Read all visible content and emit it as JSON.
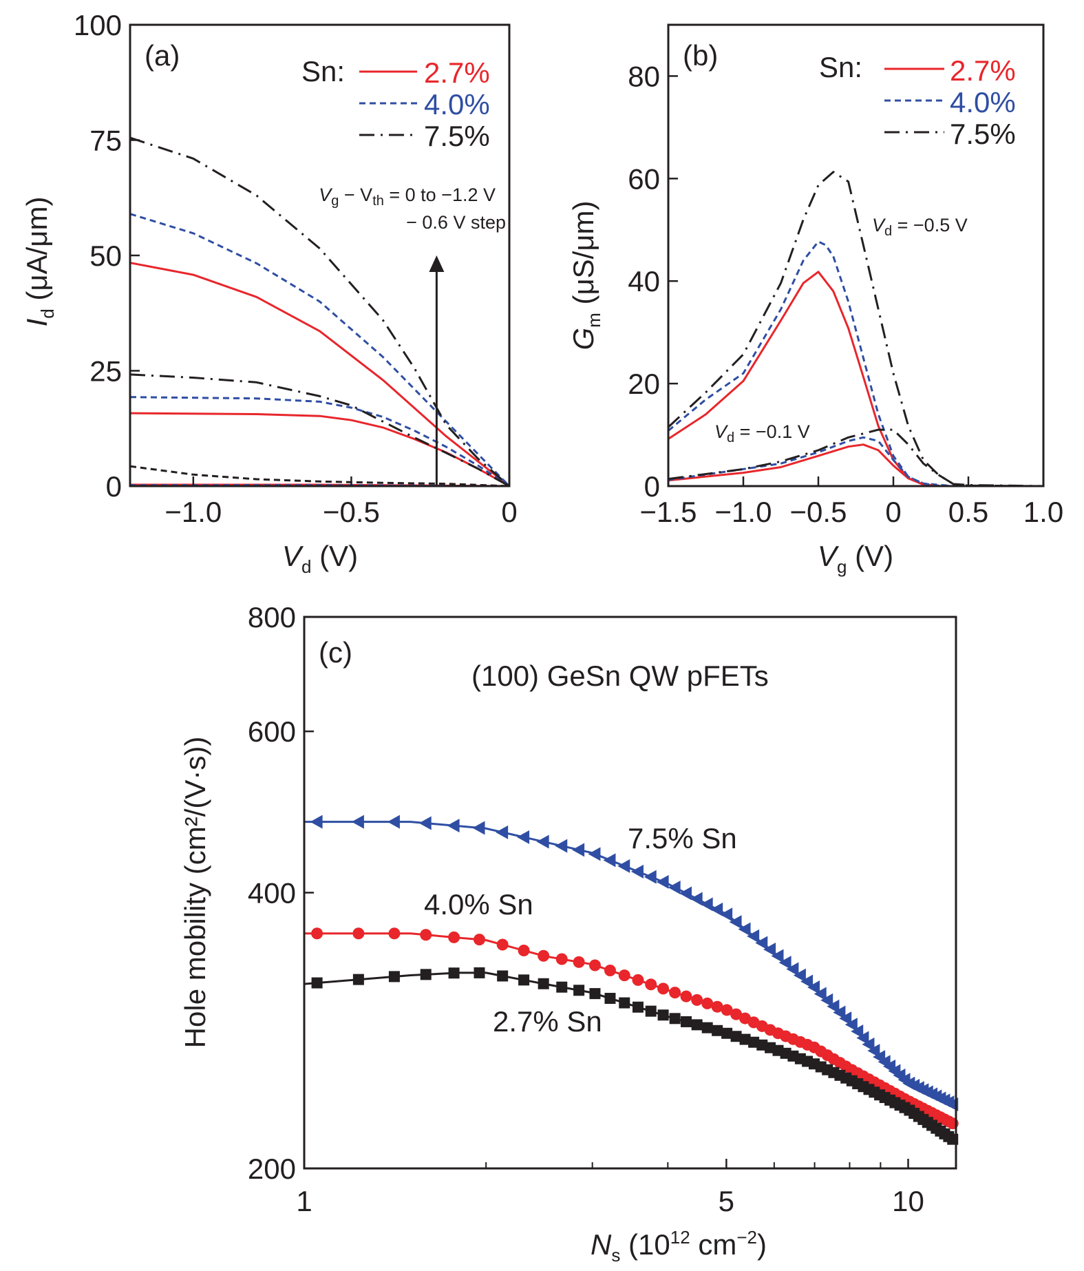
{
  "colors": {
    "red": "#e8262b",
    "blue": "#2f4ea3",
    "black": "#231f20"
  },
  "chart_data": [
    {
      "type": "line",
      "panel_label": "(a)",
      "xlabel": {
        "main": "V",
        "sub": "d",
        "unit": " (V)"
      },
      "ylabel": {
        "main": "I",
        "sub": "d",
        "unit": " (μA/μm)"
      },
      "xlim": [
        -1.2,
        0
      ],
      "ylim": [
        0,
        100
      ],
      "xticks": [
        {
          "v": -1.0,
          "label": "−1.0"
        },
        {
          "v": -0.5,
          "label": "−0.5"
        },
        {
          "v": 0,
          "label": "0"
        }
      ],
      "yticks": [
        {
          "v": 100,
          "label": "100"
        },
        {
          "v": 75,
          "label": "75"
        },
        {
          "v": 50,
          "label": "50"
        },
        {
          "v": 25,
          "label": "25"
        },
        {
          "v": 0,
          "label": "0"
        }
      ],
      "legend": {
        "title": "Sn:",
        "placement": "top-right",
        "entries": [
          {
            "label": "2.7%",
            "color": "red",
            "style": "solid"
          },
          {
            "label": "4.0%",
            "color": "blue",
            "style": "dashed"
          },
          {
            "label": "7.5%",
            "color": "black",
            "style": "dashdot"
          }
        ]
      },
      "annotation": {
        "line1_a": "V",
        "line1_a_sub": "g",
        "line1_b": " − V",
        "line1_b_sub": "th",
        "line1_c": " = 0 to −1.2 V",
        "line2": "− 0.6 V step",
        "arrow_x": -0.23,
        "arrow_from": 0,
        "arrow_to": 50
      },
      "series": [
        {
          "sn": "2.7%",
          "color": "red",
          "style": "solid",
          "x": [
            -1.2,
            -1.0,
            -0.8,
            -0.6,
            -0.4,
            -0.2,
            0
          ],
          "y": [
            48.4,
            45.8,
            41,
            33.6,
            23,
            10.8,
            0
          ]
        },
        {
          "sn": "2.7%",
          "color": "red",
          "style": "solid",
          "x": [
            -1.2,
            -0.8,
            -0.6,
            -0.5,
            -0.4,
            -0.3,
            -0.2,
            -0.1,
            0
          ],
          "y": [
            15.8,
            15.6,
            15.2,
            14.3,
            12.7,
            10.2,
            7.3,
            3.8,
            0
          ]
        },
        {
          "sn": "2.7%",
          "color": "red",
          "style": "solid",
          "x": [
            -1.2,
            -0.6,
            0
          ],
          "y": [
            0.3,
            0.3,
            0
          ]
        },
        {
          "sn": "4.0%",
          "color": "blue",
          "style": "dashed",
          "x": [
            -1.2,
            -1.0,
            -0.8,
            -0.6,
            -0.4,
            -0.2,
            0
          ],
          "y": [
            59,
            54.8,
            48.3,
            40,
            28,
            14,
            0
          ]
        },
        {
          "sn": "4.0%",
          "color": "blue",
          "style": "dashed",
          "x": [
            -1.2,
            -0.8,
            -0.6,
            -0.5,
            -0.4,
            -0.3,
            -0.2,
            -0.1,
            0
          ],
          "y": [
            19.3,
            19,
            18.3,
            17,
            15,
            12,
            8.5,
            4.5,
            0
          ]
        },
        {
          "sn": "4.0%",
          "color": "blue",
          "style": "dashed",
          "x": [
            -1.2,
            -0.6,
            0
          ],
          "y": [
            0.2,
            0.2,
            0
          ]
        },
        {
          "sn": "7.5%",
          "color": "black",
          "style": "dashdot",
          "x": [
            -1.2,
            -1.0,
            -0.8,
            -0.6,
            -0.4,
            -0.3,
            -0.2,
            -0.1,
            0
          ],
          "y": [
            75.5,
            71,
            63,
            51.5,
            36,
            25.5,
            13.3,
            6,
            0
          ]
        },
        {
          "sn": "7.5%",
          "color": "black",
          "style": "dashdot",
          "x": [
            -1.2,
            -1.0,
            -0.8,
            -0.6,
            -0.5,
            -0.4,
            -0.3,
            -0.2,
            -0.1,
            0
          ],
          "y": [
            24.2,
            23.5,
            22.5,
            19.5,
            17.5,
            14,
            10.5,
            7.2,
            3.8,
            0
          ]
        },
        {
          "sn": "7.5%",
          "color": "black",
          "style": "dashed",
          "x": [
            -1.2,
            -1.0,
            -0.8,
            -0.6,
            -0.4,
            -0.2,
            0
          ],
          "y": [
            4.3,
            2.5,
            1.5,
            1,
            0.7,
            0.5,
            0
          ]
        }
      ]
    },
    {
      "type": "line",
      "panel_label": "(b)",
      "xlabel": {
        "main": "V",
        "sub": "g",
        "unit": " (V)"
      },
      "ylabel": {
        "main": "G",
        "sub": "m",
        "unit": " (μS/μm)"
      },
      "xlim": [
        -1.5,
        1.0
      ],
      "ylim": [
        0,
        90
      ],
      "xticks": [
        {
          "v": -1.5,
          "label": "−1.5"
        },
        {
          "v": -1.0,
          "label": "−1.0"
        },
        {
          "v": -0.5,
          "label": "−0.5"
        },
        {
          "v": 0,
          "label": "0"
        },
        {
          "v": 0.5,
          "label": "0.5"
        },
        {
          "v": 1.0,
          "label": "1.0"
        }
      ],
      "yticks": [
        {
          "v": 80,
          "label": "80"
        },
        {
          "v": 60,
          "label": "60"
        },
        {
          "v": 40,
          "label": "40"
        },
        {
          "v": 20,
          "label": "20"
        },
        {
          "v": 0,
          "label": "0"
        }
      ],
      "legend": {
        "title": "Sn:",
        "placement": "top-right",
        "entries": [
          {
            "label": "2.7%",
            "color": "red",
            "style": "solid"
          },
          {
            "label": "4.0%",
            "color": "blue",
            "style": "dashed"
          },
          {
            "label": "7.5%",
            "color": "black",
            "style": "dashdot"
          }
        ]
      },
      "annotations": [
        {
          "main": "V",
          "sub": "d",
          "rest": " = −0.5 V"
        },
        {
          "main": "V",
          "sub": "d",
          "rest": " = −0.1 V"
        }
      ],
      "series": [
        {
          "sn": "2.7%",
          "vd": "-0.5 V",
          "color": "red",
          "style": "solid",
          "x": [
            -1.5,
            -1.25,
            -1.0,
            -0.75,
            -0.6,
            -0.5,
            -0.4,
            -0.3,
            -0.2,
            -0.1,
            0,
            0.1,
            0.2,
            0.3,
            0.5
          ],
          "y": [
            9.2,
            14,
            20.5,
            32.3,
            39.6,
            41.8,
            38,
            30.8,
            21.3,
            11.7,
            5.1,
            1.5,
            0.3,
            0,
            0
          ]
        },
        {
          "sn": "4.0%",
          "vd": "-0.5 V",
          "color": "blue",
          "style": "dashed",
          "x": [
            -1.5,
            -1.25,
            -1.0,
            -0.75,
            -0.6,
            -0.5,
            -0.45,
            -0.4,
            -0.3,
            -0.2,
            -0.1,
            0,
            0.1,
            0.2,
            0.4
          ],
          "y": [
            10.8,
            16.9,
            22,
            34.5,
            44,
            47.7,
            47,
            44.8,
            36,
            25,
            14,
            5.9,
            1.8,
            0.5,
            0
          ]
        },
        {
          "sn": "7.5%",
          "vd": "-0.5 V",
          "color": "black",
          "style": "dashdot",
          "x": [
            -1.5,
            -1.25,
            -1.0,
            -0.75,
            -0.6,
            -0.5,
            -0.4,
            -0.3,
            -0.2,
            -0.1,
            0,
            0.1,
            0.2,
            0.3,
            0.4,
            0.5,
            1.0
          ],
          "y": [
            11.5,
            18.3,
            25.7,
            39.6,
            52,
            58.7,
            61.3,
            59.4,
            47,
            34.5,
            22,
            11.7,
            5.1,
            2.2,
            0.4,
            0.2,
            0
          ]
        },
        {
          "sn": "2.7%",
          "vd": "-0.1 V",
          "color": "red",
          "style": "solid",
          "x": [
            -1.5,
            -1.0,
            -0.75,
            -0.5,
            -0.3,
            -0.2,
            -0.1,
            0,
            0.1,
            0.2,
            0.3,
            0.5
          ],
          "y": [
            1.1,
            2.6,
            3.7,
            5.9,
            7.7,
            8.1,
            7,
            4,
            1.5,
            0.3,
            0,
            0
          ]
        },
        {
          "sn": "4.0%",
          "vd": "-0.1 V",
          "color": "blue",
          "style": "dashed",
          "x": [
            -1.5,
            -1.0,
            -0.75,
            -0.5,
            -0.3,
            -0.2,
            -0.1,
            0,
            0.1,
            0.2,
            0.3,
            0.4
          ],
          "y": [
            1.2,
            3.3,
            4.4,
            6.6,
            8.8,
            9.5,
            8.8,
            5.1,
            1.8,
            0.5,
            0.1,
            0
          ]
        },
        {
          "sn": "7.5%",
          "vd": "-0.1 V",
          "color": "black",
          "style": "dashdot",
          "x": [
            -1.5,
            -1.0,
            -0.75,
            -0.5,
            -0.3,
            -0.1,
            0,
            0.1,
            0.2,
            0.3,
            0.4,
            0.5,
            1.0
          ],
          "y": [
            1.4,
            3.3,
            4.8,
            7,
            9.5,
            11,
            11,
            8.1,
            4.4,
            2.2,
            0.4,
            0.1,
            0
          ]
        }
      ]
    },
    {
      "type": "scatter",
      "panel_label": "(c)",
      "title": "(100) GeSn QW pFETs",
      "xlabel": {
        "main": "N",
        "sub": "s",
        "pre": " (10",
        "sup": "12",
        "unit": " cm",
        "sup2": "−2",
        "close": ")"
      },
      "ylabel": "Hole mobility (cm²/(V·s))",
      "xscale": "log",
      "yscale": "log",
      "xlim": [
        1,
        12
      ],
      "ylim": [
        200,
        800
      ],
      "xticks": [
        {
          "v": 1,
          "label": "1"
        },
        {
          "v": 5,
          "label": "5"
        },
        {
          "v": 10,
          "label": "10"
        }
      ],
      "xminor": [
        2,
        3,
        4,
        6,
        7,
        8,
        9
      ],
      "yticks": [
        {
          "v": 800,
          "label": "800"
        },
        {
          "v": 600,
          "label": "600"
        },
        {
          "v": 400,
          "label": "400"
        },
        {
          "v": 200,
          "label": "200"
        }
      ],
      "series": [
        {
          "name": "7.5% Sn",
          "color": "blue",
          "marker": "triangle-left",
          "x": [
            1,
            1.5,
            2,
            3,
            4,
            5,
            6,
            7,
            8,
            9,
            10,
            12
          ],
          "y": [
            478,
            478,
            470,
            442,
            409,
            379,
            344,
            315,
            289,
            264,
            248,
            234
          ]
        },
        {
          "name": "4.0% Sn",
          "color": "red",
          "marker": "circle",
          "x": [
            1,
            1.5,
            2,
            2.5,
            3,
            4,
            5,
            6,
            7,
            8,
            10,
            12
          ],
          "y": [
            361,
            361,
            355,
            341,
            334,
            313,
            298,
            282,
            271,
            257,
            237,
            223
          ]
        },
        {
          "name": "2.7% Sn",
          "color": "black",
          "marker": "square",
          "x": [
            1,
            1.5,
            1.8,
            2,
            2.5,
            3,
            4,
            5,
            6,
            7,
            8,
            10,
            12
          ],
          "y": [
            318,
            325,
            327,
            327,
            318,
            311,
            293,
            281,
            270,
            260,
            250,
            232,
            214
          ]
        }
      ]
    }
  ]
}
